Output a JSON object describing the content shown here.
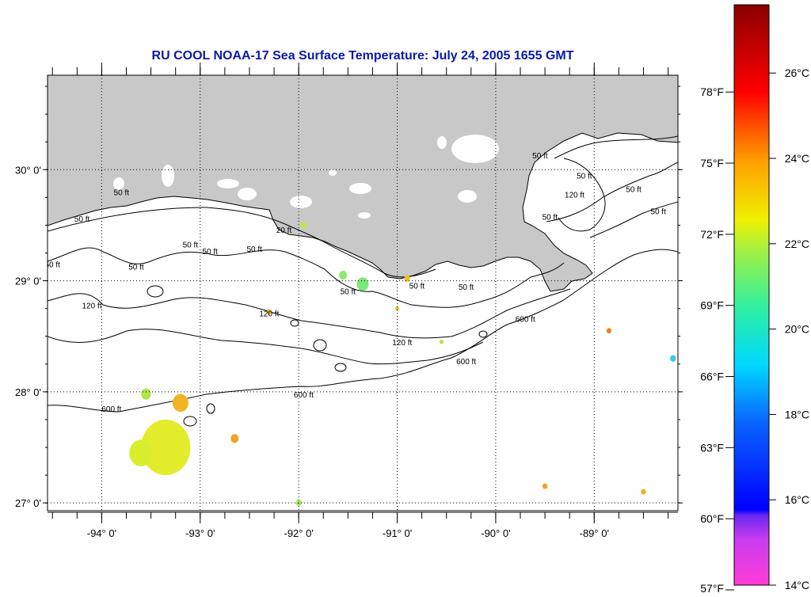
{
  "title": "RU COOL  NOAA-17  Sea Surface Temperature:  July 24, 2005 1655 GMT",
  "colors": {
    "land": "#c8c8c8",
    "ocean": "#ffffff",
    "title": "#0a1aa8",
    "grid": "#000000"
  },
  "map": {
    "lon_range": [
      -94.55,
      -88.15
    ],
    "lat_range": [
      26.93,
      30.85
    ],
    "lat_ticks": [
      {
        "value": 30,
        "label": "30° 0'"
      },
      {
        "value": 29,
        "label": "29° 0'"
      },
      {
        "value": 28,
        "label": "28° 0'"
      },
      {
        "value": 27,
        "label": "27° 0'"
      }
    ],
    "lon_ticks": [
      {
        "value": -94,
        "label": "-94° 0'"
      },
      {
        "value": -93,
        "label": "-93° 0'"
      },
      {
        "value": -92,
        "label": "-92° 0'"
      },
      {
        "value": -91,
        "label": "-91° 0'"
      },
      {
        "value": -90,
        "label": "-90° 0'"
      },
      {
        "value": -89,
        "label": "-89° 0'"
      }
    ],
    "contour_labels": [
      {
        "text": "50 ft",
        "lon": -93.8,
        "lat": 29.77
      },
      {
        "text": "50 ft",
        "lon": -94.2,
        "lat": 29.53
      },
      {
        "text": "50 ft",
        "lon": -93.1,
        "lat": 29.3
      },
      {
        "text": "50 ft",
        "lon": -92.9,
        "lat": 29.24
      },
      {
        "text": "50 ft",
        "lon": -92.45,
        "lat": 29.26
      },
      {
        "text": "20 ft",
        "lon": -92.15,
        "lat": 29.43
      },
      {
        "text": "50 ft",
        "lon": -94.5,
        "lat": 29.12
      },
      {
        "text": "50 ft",
        "lon": -93.65,
        "lat": 29.1
      },
      {
        "text": "120 ft",
        "lon": -94.1,
        "lat": 28.75
      },
      {
        "text": "120 ft",
        "lon": -92.3,
        "lat": 28.68
      },
      {
        "text": "120 ft",
        "lon": -90.95,
        "lat": 28.42
      },
      {
        "text": "50 ft",
        "lon": -91.5,
        "lat": 28.88
      },
      {
        "text": "50 ft",
        "lon": -90.8,
        "lat": 28.93
      },
      {
        "text": "50 ft",
        "lon": -90.3,
        "lat": 28.92
      },
      {
        "text": "600 ft",
        "lon": -89.7,
        "lat": 28.63
      },
      {
        "text": "600 ft",
        "lon": -90.3,
        "lat": 28.25
      },
      {
        "text": "600 ft",
        "lon": -91.95,
        "lat": 27.95
      },
      {
        "text": "600 ft",
        "lon": -93.9,
        "lat": 27.82
      },
      {
        "text": "50 ft",
        "lon": -89.55,
        "lat": 30.1
      },
      {
        "text": "50 ft",
        "lon": -89.1,
        "lat": 29.92
      },
      {
        "text": "50 ft",
        "lon": -88.6,
        "lat": 29.8
      },
      {
        "text": "50 ft",
        "lon": -89.45,
        "lat": 29.55
      },
      {
        "text": "50 ft",
        "lon": -88.35,
        "lat": 29.6
      },
      {
        "text": "120 ft",
        "lon": -89.2,
        "lat": 29.75
      }
    ]
  },
  "colorbar": {
    "fahrenheit": [
      {
        "value": 57,
        "label": "57°F"
      },
      {
        "value": 60,
        "label": "60°F"
      },
      {
        "value": 63,
        "label": "63°F"
      },
      {
        "value": 66,
        "label": "66°F"
      },
      {
        "value": 69,
        "label": "69°F"
      },
      {
        "value": 72,
        "label": "72°F"
      },
      {
        "value": 75,
        "label": "75°F"
      },
      {
        "value": 78,
        "label": "78°F"
      }
    ],
    "celsius": [
      {
        "value": 14,
        "label": "14°C"
      },
      {
        "value": 16,
        "label": "16°C"
      },
      {
        "value": 18,
        "label": "18°C"
      },
      {
        "value": 20,
        "label": "20°C"
      },
      {
        "value": 22,
        "label": "22°C"
      },
      {
        "value": 24,
        "label": "24°C"
      },
      {
        "value": 26,
        "label": "26°C"
      }
    ],
    "range_c": [
      14,
      27.6
    ]
  },
  "sst_patches": [
    {
      "lon": -93.35,
      "lat": 27.5,
      "r": 0.25,
      "color": "#e2ec2a"
    },
    {
      "lon": -93.6,
      "lat": 27.45,
      "r": 0.12,
      "color": "#d8ee2c"
    },
    {
      "lon": -93.2,
      "lat": 27.9,
      "r": 0.08,
      "color": "#f2b320"
    },
    {
      "lon": -93.55,
      "lat": 27.98,
      "r": 0.05,
      "color": "#aee648"
    },
    {
      "lon": -92.65,
      "lat": 27.58,
      "r": 0.04,
      "color": "#f2a222"
    },
    {
      "lon": -91.35,
      "lat": 28.97,
      "r": 0.06,
      "color": "#7ce878"
    },
    {
      "lon": -91.55,
      "lat": 29.05,
      "r": 0.04,
      "color": "#8ee86a"
    },
    {
      "lon": -90.9,
      "lat": 29.02,
      "r": 0.03,
      "color": "#f0c020"
    },
    {
      "lon": -91.95,
      "lat": 29.5,
      "r": 0.03,
      "color": "#b8e848"
    },
    {
      "lon": -92.0,
      "lat": 27.0,
      "r": 0.03,
      "color": "#a8e85c"
    },
    {
      "lon": -88.85,
      "lat": 28.55,
      "r": 0.025,
      "color": "#f08020"
    },
    {
      "lon": -88.2,
      "lat": 28.3,
      "r": 0.03,
      "color": "#3acbe0"
    },
    {
      "lon": -92.3,
      "lat": 28.72,
      "r": 0.025,
      "color": "#f2a222"
    },
    {
      "lon": -91.0,
      "lat": 28.75,
      "r": 0.02,
      "color": "#e8c020"
    },
    {
      "lon": -89.5,
      "lat": 27.15,
      "r": 0.025,
      "color": "#f0a020"
    },
    {
      "lon": -88.5,
      "lat": 27.1,
      "r": 0.025,
      "color": "#f0b020"
    },
    {
      "lon": -90.55,
      "lat": 28.45,
      "r": 0.02,
      "color": "#b8e04a"
    }
  ]
}
